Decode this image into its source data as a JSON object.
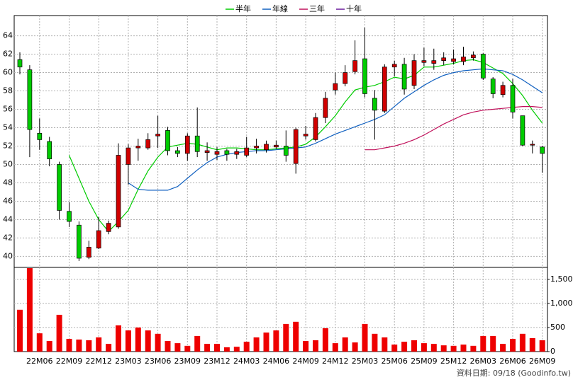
{
  "chart_data": {
    "type": "candlestick",
    "categories": [
      null,
      null,
      "22M06",
      null,
      null,
      "22M09",
      null,
      null,
      "22M12",
      null,
      null,
      "23M03",
      null,
      null,
      "23M06",
      null,
      null,
      "23M09",
      null,
      null,
      "23M12",
      null,
      null,
      "24M03",
      null,
      null,
      "24M06",
      null,
      null,
      "24M09",
      null,
      null,
      "24M12",
      null,
      null,
      "25M03",
      null,
      null,
      "25M06",
      null,
      null,
      "25M09",
      null,
      null,
      "25M12",
      null,
      null,
      "26M03",
      null,
      null,
      "26M06",
      null,
      null,
      "26M09"
    ],
    "open": [
      61.4,
      60.3,
      53.4,
      52.5,
      50.0,
      44.9,
      43.4,
      39.9,
      40.9,
      42.7,
      43.2,
      50.0,
      51.8,
      51.8,
      53.1,
      53.7,
      51.5,
      51.2,
      53.1,
      51.3,
      51.1,
      51.5,
      51.1,
      51.0,
      51.8,
      51.6,
      51.9,
      52.0,
      50.1,
      53.1,
      52.7,
      55.1,
      58.1,
      58.8,
      60.1,
      61.5,
      57.2,
      55.8,
      60.6,
      60.9,
      58.6,
      61.1,
      61.0,
      61.3,
      61.2,
      61.2,
      61.6,
      62.0,
      59.3,
      57.6,
      58.6,
      55.3,
      52.1,
      51.9
    ],
    "high": [
      62.2,
      60.8,
      55.0,
      53.0,
      50.3,
      45.9,
      43.8,
      41.7,
      44.3,
      43.9,
      52.3,
      52.2,
      52.8,
      53.4,
      55.3,
      54.1,
      51.9,
      53.4,
      56.2,
      52.4,
      51.9,
      51.7,
      51.7,
      53.0,
      52.8,
      52.6,
      52.6,
      53.7,
      54.0,
      54.2,
      55.6,
      57.9,
      60.0,
      60.8,
      63.5,
      64.9,
      58.1,
      60.9,
      61.3,
      61.6,
      62.0,
      62.7,
      62.6,
      62.2,
      62.5,
      62.8,
      62.3,
      62.1,
      59.5,
      59.0,
      59.3,
      55.3,
      52.6,
      52.0
    ],
    "low": [
      59.8,
      50.8,
      51.6,
      49.8,
      44.0,
      43.2,
      39.5,
      39.7,
      40.8,
      42.4,
      43.0,
      47.8,
      50.4,
      51.6,
      51.8,
      51.0,
      50.8,
      50.4,
      50.8,
      50.4,
      50.5,
      50.4,
      50.6,
      50.8,
      51.2,
      51.3,
      51.7,
      50.3,
      49.0,
      52.7,
      52.5,
      54.5,
      57.6,
      58.5,
      59.8,
      57.3,
      52.7,
      55.6,
      59.6,
      57.6,
      58.2,
      60.7,
      60.3,
      60.8,
      60.9,
      60.8,
      61.3,
      59.2,
      57.2,
      57.3,
      55.0,
      52.0,
      51.2,
      49.1
    ],
    "close": [
      60.6,
      53.8,
      52.7,
      50.6,
      45.0,
      43.8,
      39.8,
      41.0,
      42.8,
      43.6,
      51.0,
      51.8,
      52.0,
      52.7,
      53.3,
      51.5,
      51.2,
      53.1,
      51.4,
      51.5,
      51.4,
      51.1,
      51.4,
      51.8,
      52.0,
      52.2,
      52.1,
      51.0,
      53.8,
      53.3,
      55.1,
      57.2,
      58.8,
      60.0,
      61.3,
      57.7,
      55.9,
      60.6,
      60.9,
      58.2,
      61.3,
      61.3,
      61.3,
      61.6,
      61.5,
      61.7,
      61.9,
      59.4,
      57.7,
      58.6,
      55.7,
      52.1,
      52.2,
      51.2
    ],
    "up_color": "#d00000",
    "down_color": "#00cc00",
    "ylim": [
      38.8,
      66.2
    ],
    "yticks": [
      40,
      42,
      44,
      46,
      48,
      50,
      52,
      54,
      56,
      58,
      60,
      62,
      64
    ],
    "grid": true,
    "series": [
      {
        "name": "半年",
        "color": "#00cc00",
        "values": [
          null,
          null,
          null,
          null,
          null,
          51.0,
          48.5,
          46.0,
          44.0,
          42.7,
          43.8,
          45.0,
          47.3,
          49.3,
          50.8,
          51.9,
          52.1,
          52.3,
          52.2,
          51.9,
          51.6,
          51.8,
          51.8,
          51.7,
          51.6,
          51.6,
          51.7,
          51.8,
          51.9,
          52.2,
          53.0,
          54.1,
          55.3,
          56.8,
          58.1,
          58.4,
          58.6,
          59.0,
          59.5,
          59.3,
          59.7,
          60.6,
          60.6,
          60.8,
          61.0,
          61.3,
          61.4,
          61.1,
          60.5,
          59.9,
          58.8,
          57.5,
          55.9,
          54.5
        ]
      },
      {
        "name": "年線",
        "color": "#1060c0",
        "values": [
          null,
          null,
          null,
          null,
          null,
          null,
          null,
          null,
          null,
          null,
          null,
          48.0,
          47.3,
          47.2,
          47.2,
          47.2,
          47.6,
          48.5,
          49.4,
          50.2,
          50.8,
          51.1,
          51.3,
          51.4,
          51.5,
          51.5,
          51.6,
          51.7,
          51.8,
          51.9,
          52.3,
          52.8,
          53.3,
          53.7,
          54.1,
          54.5,
          54.9,
          55.4,
          56.3,
          57.2,
          57.9,
          58.6,
          59.2,
          59.7,
          60.0,
          60.2,
          60.3,
          60.4,
          60.3,
          60.2,
          59.8,
          59.2,
          58.5,
          57.8
        ]
      },
      {
        "name": "三年",
        "color": "#c0105a",
        "values": [
          null,
          null,
          null,
          null,
          null,
          null,
          null,
          null,
          null,
          null,
          null,
          null,
          null,
          null,
          null,
          null,
          null,
          null,
          null,
          null,
          null,
          null,
          null,
          null,
          null,
          null,
          null,
          null,
          null,
          null,
          null,
          null,
          null,
          null,
          null,
          51.6,
          51.6,
          51.8,
          52.0,
          52.3,
          52.7,
          53.2,
          53.8,
          54.4,
          54.9,
          55.4,
          55.7,
          55.9,
          56.0,
          56.1,
          56.2,
          56.3,
          56.3,
          56.2
        ]
      },
      {
        "name": "十年",
        "color": "#6a1a9a",
        "values": [
          null,
          null,
          null,
          null,
          null,
          null,
          null,
          null,
          null,
          null,
          null,
          null,
          null,
          null,
          null,
          null,
          null,
          null,
          null,
          null,
          null,
          null,
          null,
          null,
          null,
          null,
          null,
          null,
          null,
          null,
          null,
          null,
          null,
          null,
          null,
          null,
          null,
          null,
          null,
          null,
          null,
          null,
          null,
          null,
          null,
          null,
          null,
          null,
          null,
          null,
          null,
          null,
          null,
          null
        ]
      }
    ],
    "volume": {
      "color": "#ee0000",
      "values": [
        870,
        1735,
        380,
        220,
        765,
        265,
        250,
        235,
        295,
        160,
        545,
        440,
        500,
        440,
        370,
        220,
        175,
        120,
        325,
        160,
        160,
        90,
        100,
        205,
        295,
        395,
        440,
        575,
        620,
        220,
        235,
        485,
        175,
        295,
        190,
        575,
        370,
        295,
        145,
        205,
        235,
        175,
        160,
        130,
        120,
        145,
        120,
        325,
        325,
        160,
        265,
        370,
        280,
        235
      ],
      "ylim": [
        0,
        1750
      ],
      "yticks": [
        0,
        500,
        {
          "value": 1000,
          "label": "1,000"
        },
        {
          "value": 1500,
          "label": "1,500"
        }
      ]
    },
    "source": "資料日期: 09/18 (Goodinfo.tw)"
  }
}
